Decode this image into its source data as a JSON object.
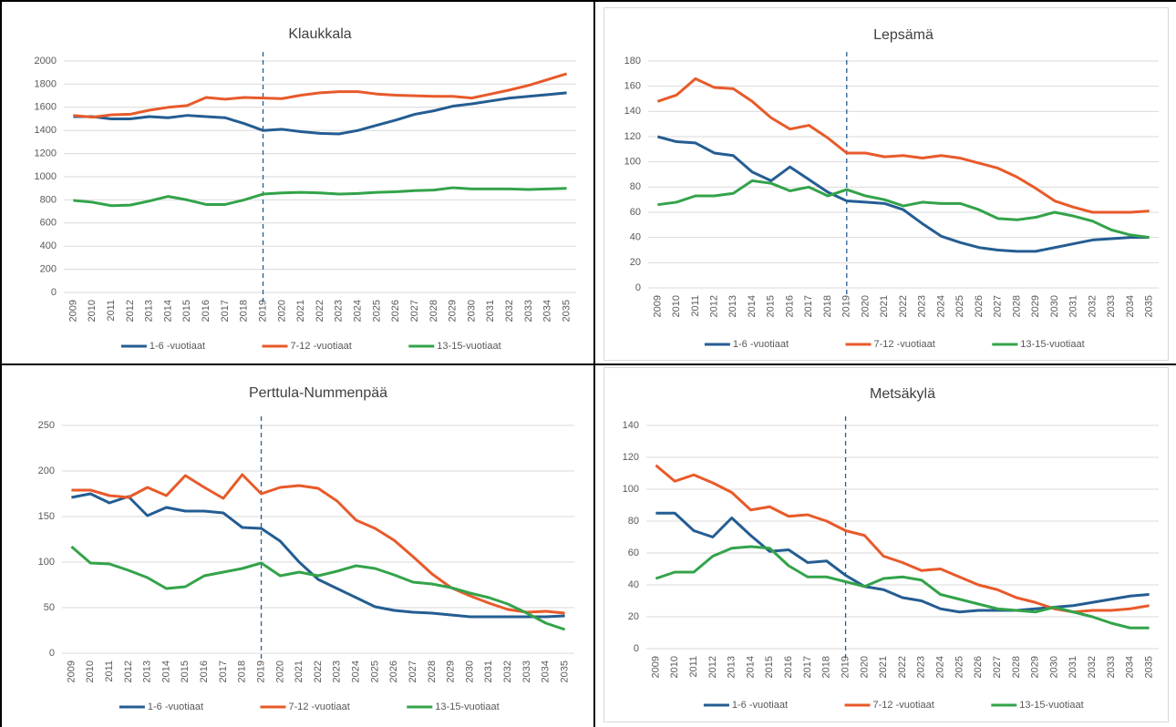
{
  "chart_data": [
    {
      "type": "line",
      "title": "Klaukkala",
      "categories": [
        "2009",
        "2010",
        "2011",
        "2012",
        "2013",
        "2014",
        "2015",
        "2016",
        "2017",
        "2018",
        "2019",
        "2020",
        "2021",
        "2022",
        "2023",
        "2024",
        "2025",
        "2026",
        "2027",
        "2028",
        "2029",
        "2030",
        "2031",
        "2032",
        "2033",
        "2034",
        "2035"
      ],
      "vline": "2019",
      "ylim": [
        0,
        2000
      ],
      "yticks": [
        0,
        200,
        400,
        600,
        800,
        1000,
        1200,
        1400,
        1600,
        1800,
        2000
      ],
      "grid": true,
      "legend": "bottom",
      "series": [
        {
          "name": "1-6 -vuotiaat",
          "color": "#245d92",
          "values": [
            1520,
            1520,
            1500,
            1500,
            1520,
            1510,
            1530,
            1520,
            1510,
            1460,
            1400,
            1410,
            1390,
            1375,
            1370,
            1400,
            1445,
            1490,
            1540,
            1570,
            1610,
            1630,
            1655,
            1680,
            1695,
            1710,
            1725
          ]
        },
        {
          "name": "7-12 -vuotiaat",
          "color": "#e85a2a",
          "values": [
            1530,
            1515,
            1535,
            1540,
            1575,
            1600,
            1615,
            1685,
            1670,
            1685,
            1680,
            1675,
            1705,
            1725,
            1735,
            1735,
            1715,
            1705,
            1700,
            1695,
            1695,
            1680,
            1715,
            1750,
            1790,
            1840,
            1890
          ]
        },
        {
          "name": "13-15-vuotiaat",
          "color": "#33a34a",
          "values": [
            795,
            780,
            750,
            755,
            790,
            830,
            800,
            760,
            760,
            800,
            850,
            860,
            865,
            860,
            850,
            855,
            865,
            870,
            880,
            885,
            905,
            895,
            895,
            895,
            890,
            895,
            900
          ]
        }
      ]
    },
    {
      "type": "line",
      "title": "Lepsämä",
      "categories": [
        "2009",
        "2010",
        "2011",
        "2012",
        "2013",
        "2014",
        "2015",
        "2016",
        "2017",
        "2018",
        "2019",
        "2020",
        "2021",
        "2022",
        "2023",
        "2024",
        "2025",
        "2026",
        "2027",
        "2028",
        "2029",
        "2030",
        "2031",
        "2032",
        "2033",
        "2034",
        "2035"
      ],
      "vline": "2019",
      "ylim": [
        0,
        180
      ],
      "yticks": [
        0,
        20,
        40,
        60,
        80,
        100,
        120,
        140,
        160,
        180
      ],
      "grid": true,
      "legend": "bottom",
      "series": [
        {
          "name": "1-6 -vuotiaat",
          "color": "#245d92",
          "values": [
            120,
            116,
            115,
            107,
            105,
            92,
            85,
            96,
            86,
            76,
            69,
            68,
            67,
            62,
            51,
            41,
            36,
            32,
            30,
            29,
            29,
            32,
            35,
            38,
            39,
            40,
            40
          ]
        },
        {
          "name": "7-12 -vuotiaat",
          "color": "#e85a2a",
          "values": [
            148,
            153,
            166,
            159,
            158,
            148,
            135,
            126,
            129,
            119,
            107,
            107,
            104,
            105,
            103,
            105,
            103,
            99,
            95,
            88,
            79,
            69,
            64,
            60,
            60,
            60,
            61
          ]
        },
        {
          "name": "13-15-vuotiaat",
          "color": "#33a34a",
          "values": [
            66,
            68,
            73,
            73,
            75,
            85,
            83,
            77,
            80,
            73,
            78,
            73,
            70,
            65,
            68,
            67,
            67,
            62,
            55,
            54,
            56,
            60,
            57,
            53,
            46,
            42,
            40
          ]
        }
      ]
    },
    {
      "type": "line",
      "title": "Perttula-Nummenpää",
      "categories": [
        "2009",
        "2010",
        "2011",
        "2012",
        "2013",
        "2014",
        "2015",
        "2016",
        "2017",
        "2018",
        "2019",
        "2020",
        "2021",
        "2022",
        "2023",
        "2024",
        "2025",
        "2026",
        "2027",
        "2028",
        "2029",
        "2030",
        "2031",
        "2032",
        "2033",
        "2034",
        "2035"
      ],
      "vline": "2019",
      "ylim": [
        0,
        250
      ],
      "yticks": [
        0,
        50,
        100,
        150,
        200,
        250
      ],
      "grid": true,
      "legend": "bottom",
      "series": [
        {
          "name": "1-6 -vuotiaat",
          "color": "#245d92",
          "values": [
            171,
            175,
            165,
            172,
            151,
            160,
            156,
            156,
            154,
            138,
            137,
            123,
            100,
            81,
            71,
            61,
            51,
            47,
            45,
            44,
            42,
            40,
            40,
            40,
            40,
            40,
            41
          ]
        },
        {
          "name": "7-12 -vuotiaat",
          "color": "#e85a2a",
          "values": [
            179,
            179,
            173,
            171,
            182,
            173,
            195,
            182,
            170,
            196,
            175,
            182,
            184,
            181,
            167,
            146,
            137,
            124,
            106,
            87,
            72,
            63,
            55,
            48,
            45,
            46,
            44
          ]
        },
        {
          "name": "13-15-vuotiaat",
          "color": "#33a34a",
          "values": [
            117,
            99,
            98,
            91,
            83,
            71,
            73,
            85,
            89,
            93,
            99,
            85,
            89,
            85,
            90,
            96,
            93,
            86,
            78,
            76,
            72,
            66,
            61,
            54,
            44,
            33,
            26
          ]
        }
      ]
    },
    {
      "type": "line",
      "title": "Metsäkylä",
      "categories": [
        "2009",
        "2010",
        "2011",
        "2012",
        "2013",
        "2014",
        "2015",
        "2016",
        "2017",
        "2018",
        "2019",
        "2020",
        "2021",
        "2022",
        "2023",
        "2024",
        "2025",
        "2026",
        "2027",
        "2028",
        "2029",
        "2030",
        "2031",
        "2032",
        "2033",
        "2034",
        "2035"
      ],
      "vline": "2019",
      "ylim": [
        0,
        140
      ],
      "yticks": [
        0,
        20,
        40,
        60,
        80,
        100,
        120,
        140
      ],
      "grid": true,
      "legend": "bottom",
      "series": [
        {
          "name": "1-6 -vuotiaat",
          "color": "#245d92",
          "values": [
            85,
            85,
            74,
            70,
            82,
            71,
            61,
            62,
            54,
            55,
            46,
            39,
            37,
            32,
            30,
            25,
            23,
            24,
            24,
            24,
            25,
            26,
            27,
            29,
            31,
            33,
            34
          ]
        },
        {
          "name": "7-12 -vuotiaat",
          "color": "#e85a2a",
          "values": [
            115,
            105,
            109,
            104,
            98,
            87,
            89,
            83,
            84,
            80,
            74,
            71,
            58,
            54,
            49,
            50,
            45,
            40,
            37,
            32,
            29,
            25,
            23,
            24,
            24,
            25,
            27
          ]
        },
        {
          "name": "13-15-vuotiaat",
          "color": "#33a34a",
          "values": [
            44,
            48,
            48,
            58,
            63,
            64,
            63,
            52,
            45,
            45,
            42,
            39,
            44,
            45,
            43,
            34,
            31,
            28,
            25,
            24,
            23,
            26,
            23,
            20,
            16,
            13,
            13
          ]
        }
      ]
    }
  ]
}
